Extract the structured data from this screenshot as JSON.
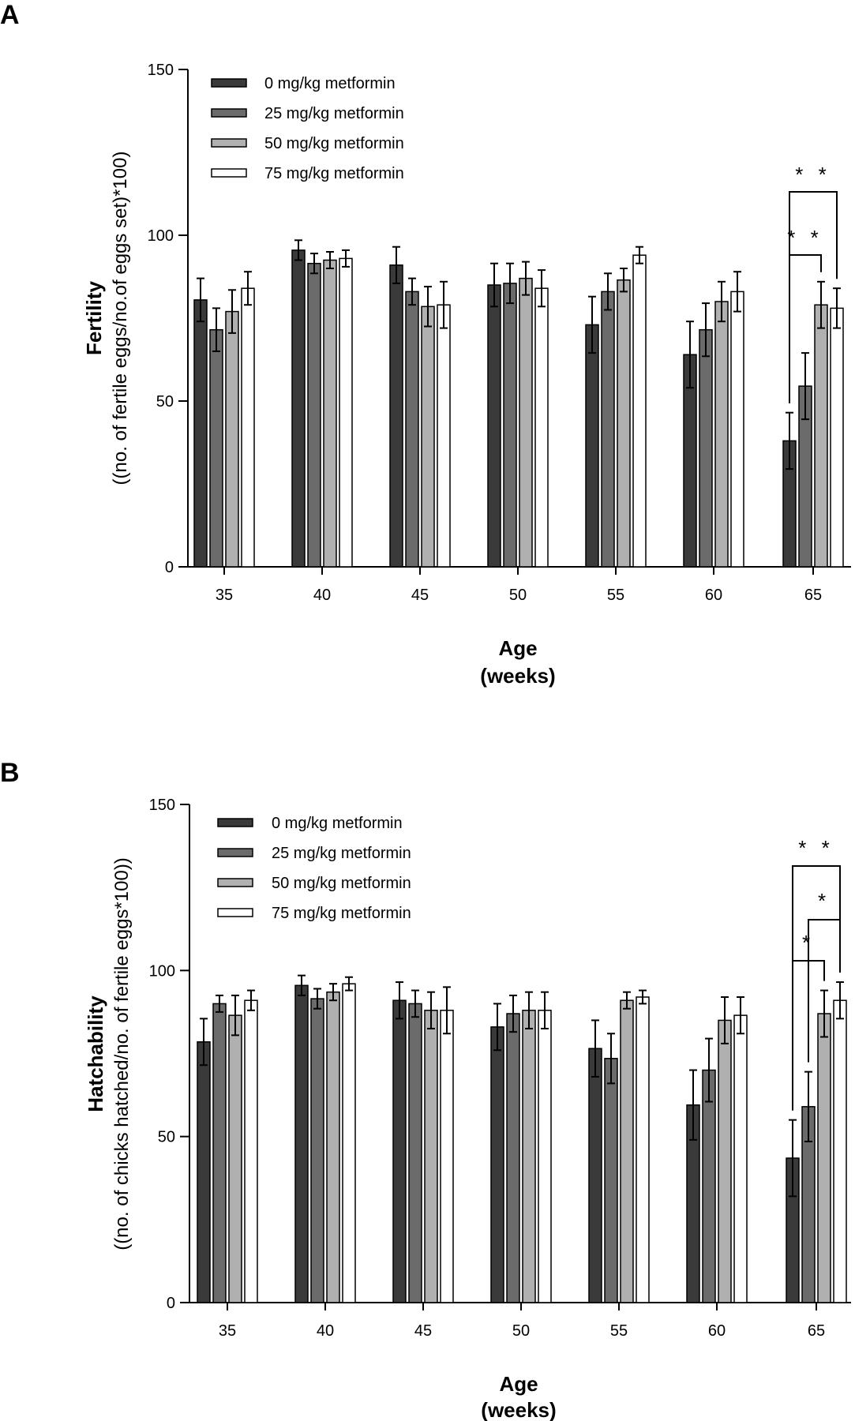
{
  "chart_data": [
    {
      "type": "bar",
      "panel_label": "A",
      "categories": [
        "35",
        "40",
        "45",
        "50",
        "55",
        "60",
        "65"
      ],
      "xlabel_line1": "Age",
      "xlabel_line2": "(weeks)",
      "ylabel_line1": "Fertility",
      "ylabel_line2": "((no. of fertile eggs/no.of eggs set)*100)",
      "ylim": [
        0,
        150
      ],
      "yticks": [
        0,
        50,
        100,
        150
      ],
      "legend_position": "top-left",
      "series": [
        {
          "name": "0 mg/kg metformin",
          "color": "#3a3a3a",
          "values": [
            80.5,
            95.5,
            91,
            85,
            73,
            64,
            38
          ],
          "errors": [
            6.5,
            3,
            5.5,
            6.5,
            8.5,
            10,
            8.5
          ]
        },
        {
          "name": "25 mg/kg metformin",
          "color": "#6b6b6b",
          "values": [
            71.5,
            91.5,
            83,
            85.5,
            83,
            71.5,
            54.5
          ],
          "errors": [
            6.5,
            3,
            4,
            6,
            5.5,
            8,
            10
          ]
        },
        {
          "name": "50 mg/kg metformin",
          "color": "#b0b0b0",
          "values": [
            77,
            92.5,
            78.5,
            87,
            86.5,
            80,
            79
          ],
          "errors": [
            6.5,
            2.5,
            6,
            5,
            3.5,
            6,
            7
          ]
        },
        {
          "name": "75 mg/kg metformin",
          "color": "#ffffff",
          "values": [
            84,
            93,
            79,
            84,
            94,
            83,
            78
          ],
          "errors": [
            5,
            2.5,
            7,
            5.5,
            2.5,
            6,
            6
          ]
        }
      ],
      "annotations": [
        {
          "text": "* *",
          "category": "65",
          "from": 0,
          "to": 3
        },
        {
          "text": "* *",
          "category": "65",
          "from": 0,
          "to": 2
        }
      ]
    },
    {
      "type": "bar",
      "panel_label": "B",
      "categories": [
        "35",
        "40",
        "45",
        "50",
        "55",
        "60",
        "65"
      ],
      "xlabel_line1": "Age",
      "xlabel_line2": "(weeks)",
      "ylabel_line1": "Hatchability",
      "ylabel_line2": "((no. of chicks hatched/no. of fertile eggs*100))",
      "ylim": [
        0,
        150
      ],
      "yticks": [
        0,
        50,
        100,
        150
      ],
      "legend_position": "top-left",
      "series": [
        {
          "name": "0 mg/kg metformin",
          "color": "#3a3a3a",
          "values": [
            78.5,
            95.5,
            91,
            83,
            76.5,
            59.5,
            43.5
          ],
          "errors": [
            7,
            3,
            5.5,
            7,
            8.5,
            10.5,
            11.5
          ]
        },
        {
          "name": "25 mg/kg metformin",
          "color": "#6b6b6b",
          "values": [
            90,
            91.5,
            90,
            87,
            73.5,
            70,
            59
          ],
          "errors": [
            2.5,
            3,
            4,
            5.5,
            7.5,
            9.5,
            10.5
          ]
        },
        {
          "name": "50 mg/kg metformin",
          "color": "#b0b0b0",
          "values": [
            86.5,
            93.5,
            88,
            88,
            91,
            85,
            87
          ],
          "errors": [
            6,
            2.5,
            5.5,
            5.5,
            2.5,
            7,
            7
          ]
        },
        {
          "name": "75 mg/kg metformin",
          "color": "#ffffff",
          "values": [
            91,
            96,
            88,
            88,
            92,
            86.5,
            91
          ],
          "errors": [
            3,
            2,
            7,
            5.5,
            2,
            5.5,
            5.5
          ]
        }
      ],
      "annotations": [
        {
          "text": "* *",
          "category": "65",
          "from": 0,
          "to": 3
        },
        {
          "text": "*",
          "category": "65",
          "from": 1,
          "to": 3
        },
        {
          "text": "*",
          "category": "65",
          "from": 0,
          "to": 2
        }
      ]
    }
  ]
}
